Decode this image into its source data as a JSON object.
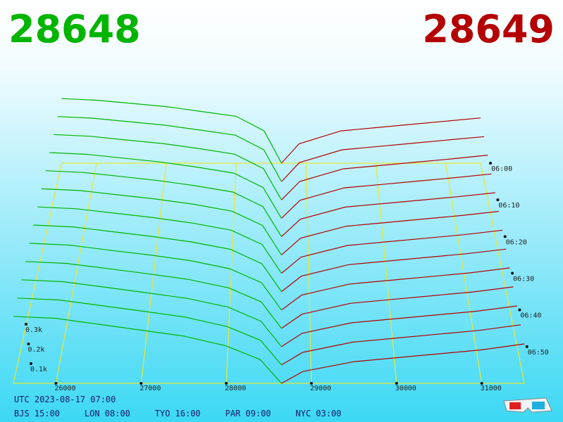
{
  "chart_data": {
    "type": "depth3d",
    "bid_last": 28648,
    "ask_last": 28649,
    "bid_color": "#00b400",
    "ask_color": "#b40000",
    "grid_color": "#e8e830",
    "xlim": [
      25500,
      31500
    ],
    "xticks": [
      26000,
      27000,
      28000,
      29000,
      30000,
      31000
    ],
    "ylim": [
      0,
      400
    ],
    "yticks": [
      {
        "value": 100,
        "label": "0.1k"
      },
      {
        "value": 200,
        "label": "0.2k"
      },
      {
        "value": 300,
        "label": "0.3k"
      }
    ],
    "zlim": [
      360,
      420
    ],
    "zticks": [
      {
        "value": 360,
        "label": "06:00"
      },
      {
        "value": 370,
        "label": "06:10"
      },
      {
        "value": 380,
        "label": "06:20"
      },
      {
        "value": 390,
        "label": "06:30"
      },
      {
        "value": 400,
        "label": "06:40"
      },
      {
        "value": 410,
        "label": "06:50"
      }
    ],
    "bid_x": [
      25500,
      26000,
      26500,
      27000,
      27500,
      28000,
      28400,
      28648
    ],
    "ask_x": [
      28649,
      28900,
      29500,
      30000,
      30500,
      31000,
      31500
    ],
    "snapshots": [
      {
        "t": 360,
        "bid": [
          400,
          390,
          370,
          350,
          320,
          290,
          200,
          0
        ],
        "ask": [
          0,
          120,
          200,
          220,
          240,
          260,
          280
        ]
      },
      {
        "t": 365,
        "bid": [
          395,
          385,
          364,
          343,
          313,
          282,
          193,
          0
        ],
        "ask": [
          0,
          115,
          193,
          213,
          233,
          253,
          273
        ]
      },
      {
        "t": 370,
        "bid": [
          390,
          380,
          358,
          337,
          307,
          273,
          187,
          0
        ],
        "ask": [
          0,
          110,
          185,
          205,
          225,
          245,
          267
        ]
      },
      {
        "t": 375,
        "bid": [
          385,
          375,
          353,
          330,
          300,
          265,
          180,
          0
        ],
        "ask": [
          0,
          105,
          178,
          198,
          218,
          238,
          260
        ]
      },
      {
        "t": 380,
        "bid": [
          380,
          370,
          347,
          323,
          293,
          257,
          173,
          0
        ],
        "ask": [
          0,
          100,
          170,
          190,
          210,
          230,
          253
        ]
      },
      {
        "t": 385,
        "bid": [
          375,
          365,
          341,
          317,
          287,
          248,
          167,
          0
        ],
        "ask": [
          0,
          95,
          163,
          183,
          203,
          223,
          247
        ]
      },
      {
        "t": 390,
        "bid": [
          370,
          360,
          335,
          310,
          280,
          240,
          160,
          0
        ],
        "ask": [
          0,
          90,
          155,
          175,
          195,
          215,
          240
        ]
      },
      {
        "t": 395,
        "bid": [
          365,
          355,
          329,
          303,
          273,
          232,
          153,
          0
        ],
        "ask": [
          0,
          85,
          148,
          168,
          188,
          208,
          233
        ]
      },
      {
        "t": 400,
        "bid": [
          360,
          350,
          323,
          297,
          267,
          223,
          147,
          0
        ],
        "ask": [
          0,
          80,
          140,
          160,
          180,
          200,
          227
        ]
      },
      {
        "t": 405,
        "bid": [
          355,
          345,
          318,
          290,
          260,
          215,
          140,
          0
        ],
        "ask": [
          0,
          75,
          133,
          153,
          173,
          193,
          220
        ]
      },
      {
        "t": 410,
        "bid": [
          350,
          340,
          312,
          283,
          253,
          207,
          133,
          0
        ],
        "ask": [
          0,
          70,
          125,
          145,
          165,
          185,
          213
        ]
      },
      {
        "t": 415,
        "bid": [
          345,
          335,
          306,
          277,
          247,
          198,
          127,
          0
        ],
        "ask": [
          0,
          65,
          118,
          138,
          158,
          178,
          207
        ]
      },
      {
        "t": 420,
        "bid": [
          340,
          330,
          300,
          270,
          240,
          190,
          120,
          0
        ],
        "ask": [
          0,
          60,
          110,
          130,
          150,
          170,
          200
        ]
      }
    ]
  },
  "footer": {
    "utc": "UTC 2023-08-17 07:00",
    "clocks": [
      "BJS 15:00",
      "LON 08:00",
      "TYO 16:00",
      "PAR 09:00",
      "NYC 03:00"
    ]
  }
}
